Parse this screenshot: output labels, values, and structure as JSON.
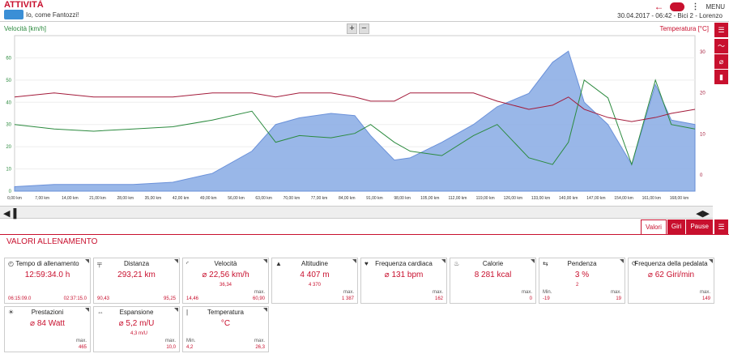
{
  "header": {
    "title": "ATTIVITÀ",
    "subtitle": "Io, come Fantozzi!",
    "meta": "30.04.2017 - 06:42 - Bici 2 - Lorenzo",
    "menu_label": "MENU"
  },
  "chart": {
    "left_label": "Velocità [km/h]",
    "right_label": "Temperatura [°C]",
    "zoom_in": "+",
    "zoom_out": "−"
  },
  "tabs": [
    "Valori",
    "Giri",
    "Pause"
  ],
  "section_title": "VALORI ALLENAMENTO",
  "cards": [
    {
      "name": "Tempo di allenamento",
      "value": "12:59:34.0 h",
      "min": "06:15:09.0",
      "max": "02:37:15.0"
    },
    {
      "name": "Distanza",
      "value": "293,21 km",
      "min": "90,43",
      "max": "95,25"
    },
    {
      "name": "Velocità",
      "value": "⌀ 22,56 km/h",
      "min": "14,46",
      "mid": "36,34",
      "maxlbl": "max.",
      "max": "60,90"
    },
    {
      "name": "Altitudine",
      "value": "4 407 m",
      "mid": "4 370",
      "maxlbl": "max.",
      "max": "1 387"
    },
    {
      "name": "Frequenza cardiaca",
      "value": "⌀ 131 bpm",
      "maxlbl": "max.",
      "max": "162"
    },
    {
      "name": "Calorie",
      "value": "8 281 kcal",
      "maxlbl": "max.",
      "max": "0"
    },
    {
      "name": "Pendenza",
      "value": "3 %",
      "mid": "2",
      "minlbl": "Min.",
      "min": "-19",
      "maxlbl": "max.",
      "max": "19"
    },
    {
      "name": "Frequenza della pedalata",
      "value": "⌀ 62 Giri/min",
      "maxlbl": "max.",
      "max": "149"
    },
    {
      "name": "Prestazioni",
      "value": "⌀ 84 Watt",
      "maxlbl": "max.",
      "max": "465"
    },
    {
      "name": "Espansione",
      "value": "⌀ 5,2 m/U",
      "mid": "4,3 m/U",
      "maxlbl": "max.",
      "max": "10,0"
    },
    {
      "name": "Temperatura",
      "value": "°C",
      "minlbl": "Min.",
      "min": "4,2",
      "maxlbl": "max.",
      "max": "26,3"
    }
  ],
  "chart_data": {
    "type": "area",
    "x_unit": "km",
    "x_ticks": [
      "0,00 km",
      "7,00 km",
      "14,00 km",
      "21,00 km",
      "28,00 km",
      "35,00 km",
      "42,00 km",
      "49,00 km",
      "56,00 km",
      "63,00 km",
      "70,00 km",
      "77,00 km",
      "84,00 km",
      "91,00 km",
      "98,00 km",
      "105,00 km",
      "112,00 km",
      "119,00 km",
      "126,00 km",
      "133,00 km",
      "140,00 km",
      "147,00 km",
      "154,00 km",
      "161,00 km",
      "168,00 km"
    ],
    "y_left_ticks": [
      "0",
      "10",
      "20",
      "30",
      "40",
      "50",
      "60"
    ],
    "y_right_ticks": [
      "0",
      "10",
      "20",
      "30"
    ],
    "series": [
      {
        "name": "Altitudine",
        "color": "#8fb0e6",
        "x": [
          0,
          10,
          20,
          30,
          40,
          50,
          60,
          66,
          72,
          80,
          86,
          90,
          96,
          100,
          108,
          116,
          122,
          130,
          136,
          140,
          144,
          150,
          156,
          162,
          166,
          172
        ],
        "y": [
          2,
          3,
          3,
          3,
          4,
          8,
          18,
          30,
          33,
          35,
          34,
          25,
          14,
          15,
          22,
          30,
          38,
          44,
          58,
          63,
          40,
          30,
          12,
          48,
          32,
          30
        ]
      },
      {
        "name": "Velocità [km/h]",
        "color": "#2b8a3e",
        "x": [
          0,
          10,
          20,
          30,
          40,
          50,
          60,
          66,
          72,
          80,
          86,
          90,
          96,
          100,
          108,
          116,
          122,
          130,
          136,
          140,
          144,
          150,
          156,
          162,
          166,
          172
        ],
        "y": [
          30,
          28,
          27,
          28,
          29,
          32,
          36,
          22,
          25,
          24,
          26,
          30,
          22,
          18,
          16,
          25,
          30,
          15,
          12,
          22,
          50,
          42,
          12,
          50,
          30,
          28
        ]
      },
      {
        "name": "Temperatura [°C]",
        "color": "#a31a3a",
        "x": [
          0,
          10,
          20,
          30,
          40,
          50,
          60,
          66,
          72,
          80,
          86,
          90,
          96,
          100,
          108,
          116,
          122,
          130,
          136,
          140,
          144,
          150,
          156,
          162,
          166,
          172
        ],
        "y": [
          19,
          20,
          19,
          19,
          19,
          20,
          20,
          19,
          20,
          20,
          19,
          18,
          18,
          20,
          20,
          20,
          18,
          16,
          17,
          19,
          16,
          14,
          13,
          14,
          15,
          16
        ]
      }
    ]
  }
}
